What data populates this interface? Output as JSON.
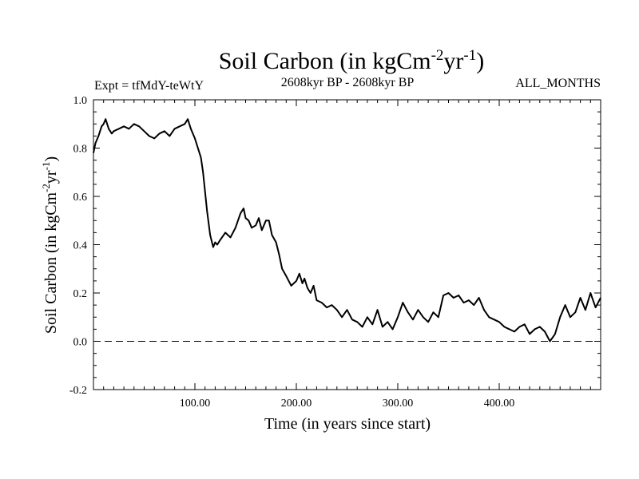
{
  "chart_data": {
    "type": "line",
    "title": "Soil Carbon (in kgCm",
    "title_sup1": "-2",
    "title_mid": "yr",
    "title_sup2": "-1",
    "title_end": ")",
    "subtitle_left": "Expt = tfMdY-teWtY",
    "subtitle_center": "2608kyr BP - 2608kyr BP",
    "subtitle_right": "ALL_MONTHS",
    "xlabel": "Time (in years since start)",
    "ylabel": "Soil Carbon (in kgCm",
    "ylabel_sup1": "-2",
    "ylabel_mid": "yr",
    "ylabel_sup2": "-1",
    "ylabel_end": ")",
    "xlim": [
      0,
      500
    ],
    "ylim": [
      -0.2,
      1.0
    ],
    "xticks": [
      100,
      200,
      300,
      400
    ],
    "xtick_labels": [
      "100.00",
      "200.00",
      "300.00",
      "400.00"
    ],
    "yticks": [
      -0.2,
      0.0,
      0.2,
      0.4,
      0.6,
      0.8,
      1.0
    ],
    "ytick_labels": [
      "-0.2",
      "0.0",
      "0.2",
      "0.4",
      "0.6",
      "0.8",
      "1.0"
    ],
    "reference_line": 0.0,
    "series": [
      {
        "name": "Soil Carbon",
        "x": [
          0,
          2,
          5,
          8,
          10,
          12,
          15,
          18,
          20,
          25,
          30,
          35,
          40,
          45,
          50,
          55,
          60,
          65,
          70,
          75,
          80,
          85,
          90,
          93,
          96,
          100,
          103,
          106,
          108,
          110,
          112,
          115,
          118,
          120,
          122,
          125,
          130,
          135,
          140,
          145,
          148,
          150,
          153,
          156,
          160,
          163,
          166,
          170,
          173,
          176,
          180,
          183,
          186,
          190,
          195,
          200,
          203,
          206,
          208,
          211,
          214,
          217,
          220,
          225,
          230,
          235,
          240,
          245,
          250,
          255,
          260,
          265,
          270,
          275,
          280,
          285,
          290,
          295,
          300,
          305,
          310,
          315,
          320,
          325,
          330,
          335,
          340,
          345,
          350,
          355,
          360,
          365,
          370,
          375,
          380,
          385,
          390,
          395,
          400,
          405,
          410,
          415,
          420,
          425,
          430,
          435,
          440,
          445,
          450,
          455,
          460,
          465,
          470,
          475,
          480,
          485,
          490,
          495,
          500
        ],
        "values": [
          0.78,
          0.82,
          0.85,
          0.89,
          0.9,
          0.92,
          0.88,
          0.86,
          0.87,
          0.88,
          0.89,
          0.88,
          0.9,
          0.89,
          0.87,
          0.85,
          0.84,
          0.86,
          0.87,
          0.85,
          0.88,
          0.89,
          0.9,
          0.92,
          0.88,
          0.84,
          0.8,
          0.76,
          0.7,
          0.62,
          0.54,
          0.44,
          0.39,
          0.41,
          0.4,
          0.42,
          0.45,
          0.43,
          0.47,
          0.53,
          0.55,
          0.51,
          0.5,
          0.47,
          0.48,
          0.51,
          0.46,
          0.5,
          0.5,
          0.44,
          0.41,
          0.36,
          0.3,
          0.27,
          0.23,
          0.25,
          0.28,
          0.24,
          0.26,
          0.22,
          0.2,
          0.23,
          0.17,
          0.16,
          0.14,
          0.15,
          0.13,
          0.1,
          0.13,
          0.09,
          0.08,
          0.06,
          0.1,
          0.07,
          0.13,
          0.06,
          0.08,
          0.05,
          0.1,
          0.16,
          0.12,
          0.09,
          0.13,
          0.1,
          0.08,
          0.12,
          0.1,
          0.19,
          0.2,
          0.18,
          0.19,
          0.16,
          0.17,
          0.15,
          0.18,
          0.13,
          0.1,
          0.09,
          0.08,
          0.06,
          0.05,
          0.04,
          0.06,
          0.07,
          0.03,
          0.05,
          0.06,
          0.04,
          0.0,
          0.03,
          0.1,
          0.15,
          0.1,
          0.12,
          0.18,
          0.13,
          0.2,
          0.14,
          0.18
        ]
      }
    ]
  }
}
